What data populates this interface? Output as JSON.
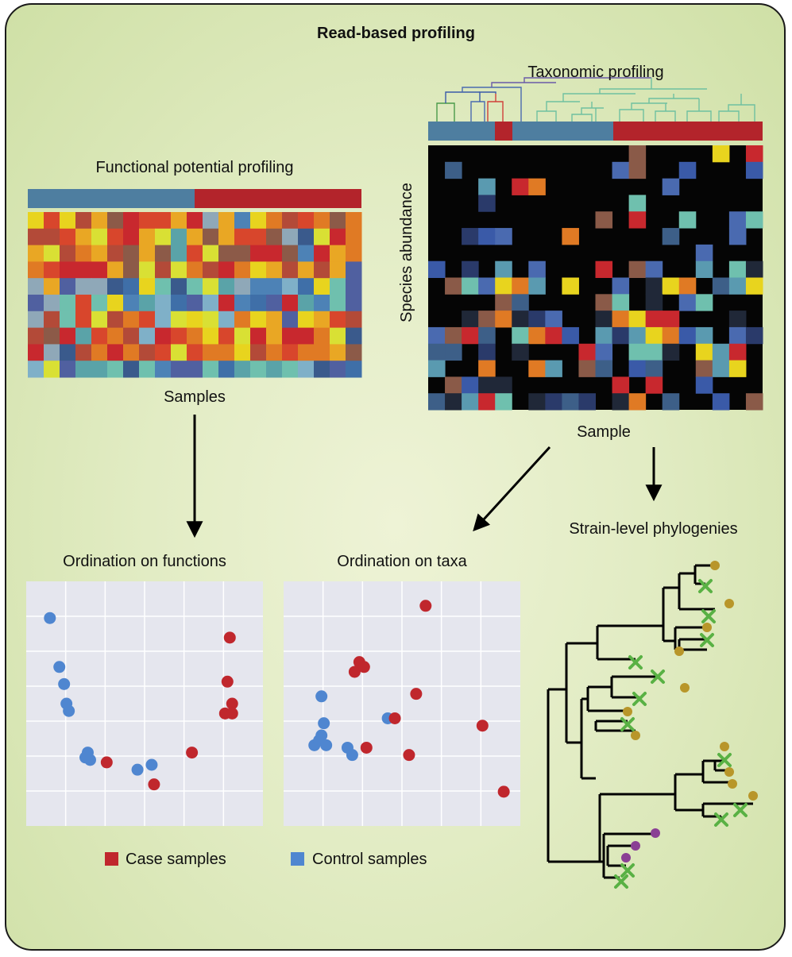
{
  "title": "Read-based profiling",
  "labels": {
    "taxonomic": "Taxonomic profiling",
    "functional": "Functional potential profiling",
    "species_axis": "Species abundance",
    "samples": "Samples",
    "sample": "Sample",
    "strain": "Strain-level phylogenies",
    "ord_functions": "Ordination on functions",
    "ord_taxa": "Ordination on taxa"
  },
  "legend": {
    "case": "Case samples",
    "control": "Control samples"
  },
  "colors": {
    "case": "#c0272d",
    "control": "#4f86d0",
    "case_bar": "#b3242b",
    "control_bar": "#4e7ea0",
    "gold": "#b8962a",
    "purple": "#8a3f94",
    "cross": "#59b144"
  },
  "chart_data": [
    {
      "type": "scatter",
      "title": "Ordination on functions",
      "xlim": [
        0,
        10
      ],
      "ylim": [
        0,
        10
      ],
      "series": [
        {
          "name": "Control samples",
          "color": "#4f86d0",
          "points": [
            [
              1.0,
              8.5
            ],
            [
              1.4,
              6.5
            ],
            [
              1.6,
              5.8
            ],
            [
              1.7,
              5.0
            ],
            [
              1.8,
              4.7
            ],
            [
              2.6,
              3.0
            ],
            [
              2.5,
              2.8
            ],
            [
              2.7,
              2.7
            ],
            [
              4.7,
              2.3
            ],
            [
              5.3,
              2.5
            ]
          ]
        },
        {
          "name": "Case samples",
          "color": "#c0272d",
          "points": [
            [
              3.4,
              2.6
            ],
            [
              5.4,
              1.7
            ],
            [
              7.0,
              3.0
            ],
            [
              8.6,
              7.7
            ],
            [
              8.5,
              5.9
            ],
            [
              8.7,
              5.0
            ],
            [
              8.4,
              4.6
            ],
            [
              8.7,
              4.6
            ]
          ]
        }
      ]
    },
    {
      "type": "scatter",
      "title": "Ordination on taxa",
      "xlim": [
        0,
        10
      ],
      "ylim": [
        0,
        10
      ],
      "series": [
        {
          "name": "Control samples",
          "color": "#4f86d0",
          "points": [
            [
              1.6,
              5.3
            ],
            [
              1.7,
              4.2
            ],
            [
              1.6,
              3.7
            ],
            [
              1.3,
              3.3
            ],
            [
              1.5,
              3.5
            ],
            [
              1.8,
              3.3
            ],
            [
              2.7,
              3.2
            ],
            [
              2.9,
              2.9
            ],
            [
              4.4,
              4.4
            ]
          ]
        },
        {
          "name": "Case samples",
          "color": "#c0272d",
          "points": [
            [
              6.0,
              9.0
            ],
            [
              3.0,
              6.3
            ],
            [
              3.2,
              6.7
            ],
            [
              3.4,
              6.5
            ],
            [
              3.5,
              3.2
            ],
            [
              4.7,
              4.4
            ],
            [
              5.6,
              5.4
            ],
            [
              5.3,
              2.9
            ],
            [
              8.4,
              4.1
            ],
            [
              9.3,
              1.4
            ]
          ]
        }
      ]
    }
  ]
}
